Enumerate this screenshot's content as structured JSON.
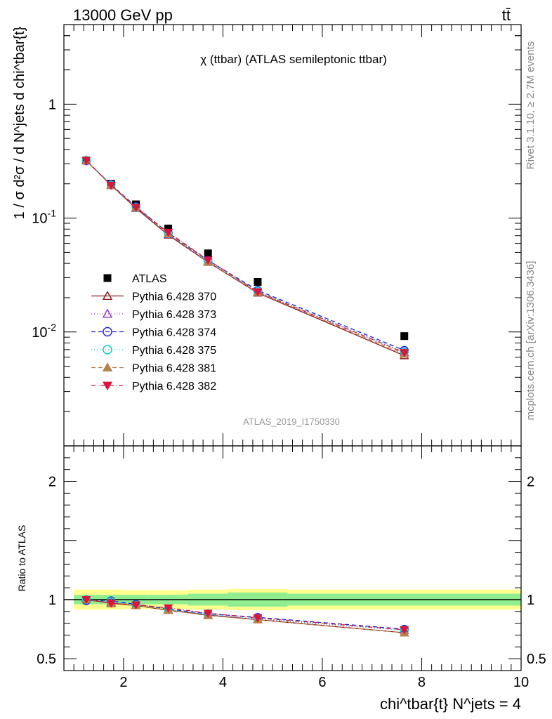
{
  "header": {
    "left_label": "13000 GeV pp",
    "right_label": "tt̄"
  },
  "side_labels": {
    "rivet": "Rivet 3.1.10, ≥ 2.7M events",
    "mcplots": "mcplots.cern.ch [arXiv:1306.3436]"
  },
  "chart_data": [
    {
      "type": "scatter",
      "panel": "main",
      "title": "χ (ttbar) (ATLAS semileptonic ttbar)",
      "watermark": "ATLAS_2019_I1750330",
      "ylabel": "1 / σ d²σ / d N^jets d chi^tbar{t}",
      "yscale": "log",
      "ylim": [
        0.001,
        5
      ],
      "xlim": [
        0.8,
        10
      ],
      "y_tick_labels": [
        "10^-2",
        "10^-1",
        "1"
      ],
      "legend_position": "left-middle",
      "x": [
        1.25,
        1.75,
        2.25,
        2.9,
        3.7,
        4.7,
        7.65
      ],
      "series": [
        {
          "name": "ATLAS",
          "color": "#000000",
          "marker": "square",
          "values": [
            0.32,
            0.2,
            0.132,
            0.081,
            0.049,
            0.0275,
            0.0092
          ]
        },
        {
          "name": "Pythia 6.428 370",
          "color": "#8b1a1a",
          "marker": "triangle-open",
          "dash": "",
          "values": [
            0.32,
            0.194,
            0.122,
            0.071,
            0.041,
            0.022,
            0.0062
          ]
        },
        {
          "name": "Pythia 6.428 373",
          "color": "#9932cc",
          "marker": "triangle-open",
          "dash": "1,3",
          "values": [
            0.322,
            0.196,
            0.124,
            0.072,
            0.0415,
            0.0225,
            0.0066
          ]
        },
        {
          "name": "Pythia 6.428 374",
          "color": "#1e1ee0",
          "marker": "circle-open",
          "dash": "6,4",
          "values": [
            0.318,
            0.197,
            0.126,
            0.074,
            0.0425,
            0.0232,
            0.0069
          ]
        },
        {
          "name": "Pythia 6.428 375",
          "color": "#00ced1",
          "marker": "circle-open",
          "dash": "1,3",
          "values": [
            0.322,
            0.195,
            0.124,
            0.073,
            0.0418,
            0.0228,
            0.0067
          ]
        },
        {
          "name": "Pythia 6.428 381",
          "color": "#b8804a",
          "marker": "triangle-filled",
          "dash": "6,4",
          "values": [
            0.32,
            0.193,
            0.124,
            0.073,
            0.0412,
            0.0222,
            0.0064
          ]
        },
        {
          "name": "Pythia 6.428 382",
          "color": "#dc143c",
          "marker": "triangle-down-filled",
          "dash": "6,3,1,3",
          "values": [
            0.321,
            0.194,
            0.124,
            0.075,
            0.0428,
            0.0225,
            0.0066
          ]
        }
      ]
    },
    {
      "type": "line",
      "panel": "ratio",
      "ylabel": "Ratio to ATLAS",
      "xlabel": "chi^tbar{t} N^jets = 4",
      "ylim": [
        0.4,
        2.3
      ],
      "xlim": [
        0.8,
        10
      ],
      "y_tick_labels": [
        "0.5",
        "1",
        "2"
      ],
      "x_tick_labels": [
        "2",
        "4",
        "6",
        "8",
        "10"
      ],
      "x": [
        1.25,
        1.75,
        2.25,
        2.9,
        3.7,
        4.7,
        7.65
      ],
      "bands": {
        "edges": [
          1.0,
          1.5,
          2.0,
          2.5,
          3.3,
          4.1,
          5.3,
          10.0
        ],
        "inner_halfwidth": [
          0.04,
          0.04,
          0.04,
          0.04,
          0.05,
          0.06,
          0.05
        ],
        "outer_halfwidth": [
          0.085,
          0.085,
          0.08,
          0.08,
          0.085,
          0.09,
          0.085
        ],
        "inner_color": "#90ee90",
        "outer_color": "#ffff90"
      },
      "series": [
        {
          "name": "Pythia 6.428 370",
          "values": [
            1.0,
            0.97,
            0.95,
            0.91,
            0.87,
            0.83,
            0.72
          ]
        },
        {
          "name": "Pythia 6.428 373",
          "values": [
            1.0,
            0.98,
            0.955,
            0.915,
            0.87,
            0.835,
            0.74
          ]
        },
        {
          "name": "Pythia 6.428 374",
          "values": [
            0.99,
            0.99,
            0.96,
            0.92,
            0.88,
            0.85,
            0.75
          ]
        },
        {
          "name": "Pythia 6.428 375",
          "values": [
            1.0,
            0.985,
            0.955,
            0.915,
            0.875,
            0.84,
            0.74
          ]
        },
        {
          "name": "Pythia 6.428 381",
          "values": [
            1.0,
            0.965,
            0.95,
            0.91,
            0.865,
            0.83,
            0.72
          ]
        },
        {
          "name": "Pythia 6.428 382",
          "values": [
            1.0,
            0.97,
            0.955,
            0.93,
            0.885,
            0.845,
            0.745
          ]
        }
      ]
    }
  ]
}
